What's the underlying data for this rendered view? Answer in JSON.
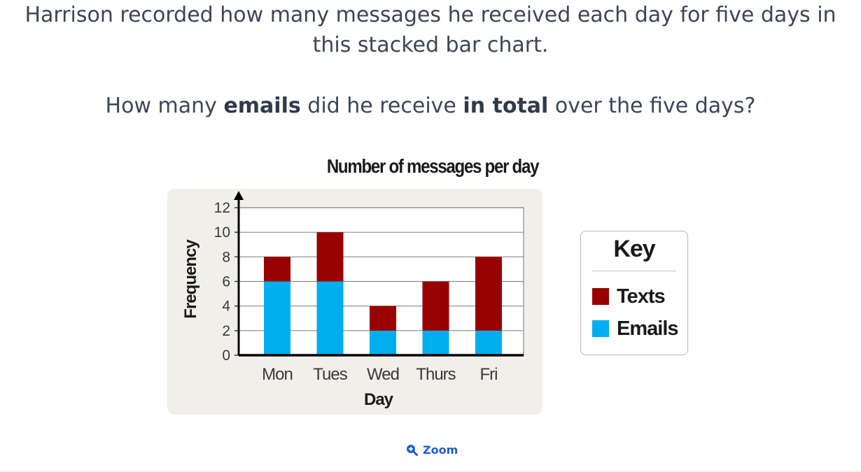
{
  "question": {
    "intro": "Harrison recorded how many messages he received each day for five days in this stacked bar chart.",
    "ask": {
      "pre": "How many ",
      "bold1": "emails",
      "mid": " did he receive ",
      "bold2": "in total",
      "post": " over the five days?"
    }
  },
  "chart_data": {
    "type": "bar",
    "stacked": true,
    "title": "Number of messages per day",
    "xlabel": "Day",
    "ylabel": "Frequency",
    "categories": [
      "Mon",
      "Tues",
      "Wed",
      "Thurs",
      "Fri"
    ],
    "series": [
      {
        "name": "Emails",
        "color": "#00aeef",
        "values": [
          6,
          6,
          2,
          2,
          2
        ]
      },
      {
        "name": "Texts",
        "color": "#990000",
        "values": [
          2,
          4,
          2,
          4,
          6
        ]
      }
    ],
    "ylim": [
      0,
      12
    ],
    "yticks": [
      0,
      2,
      4,
      6,
      8,
      10,
      12
    ],
    "grid": true,
    "legend": {
      "title": "Key",
      "placement": "right"
    }
  },
  "zoom": {
    "label": "Zoom",
    "icon": "zoom-in-icon",
    "color": "#1d5fd1"
  }
}
